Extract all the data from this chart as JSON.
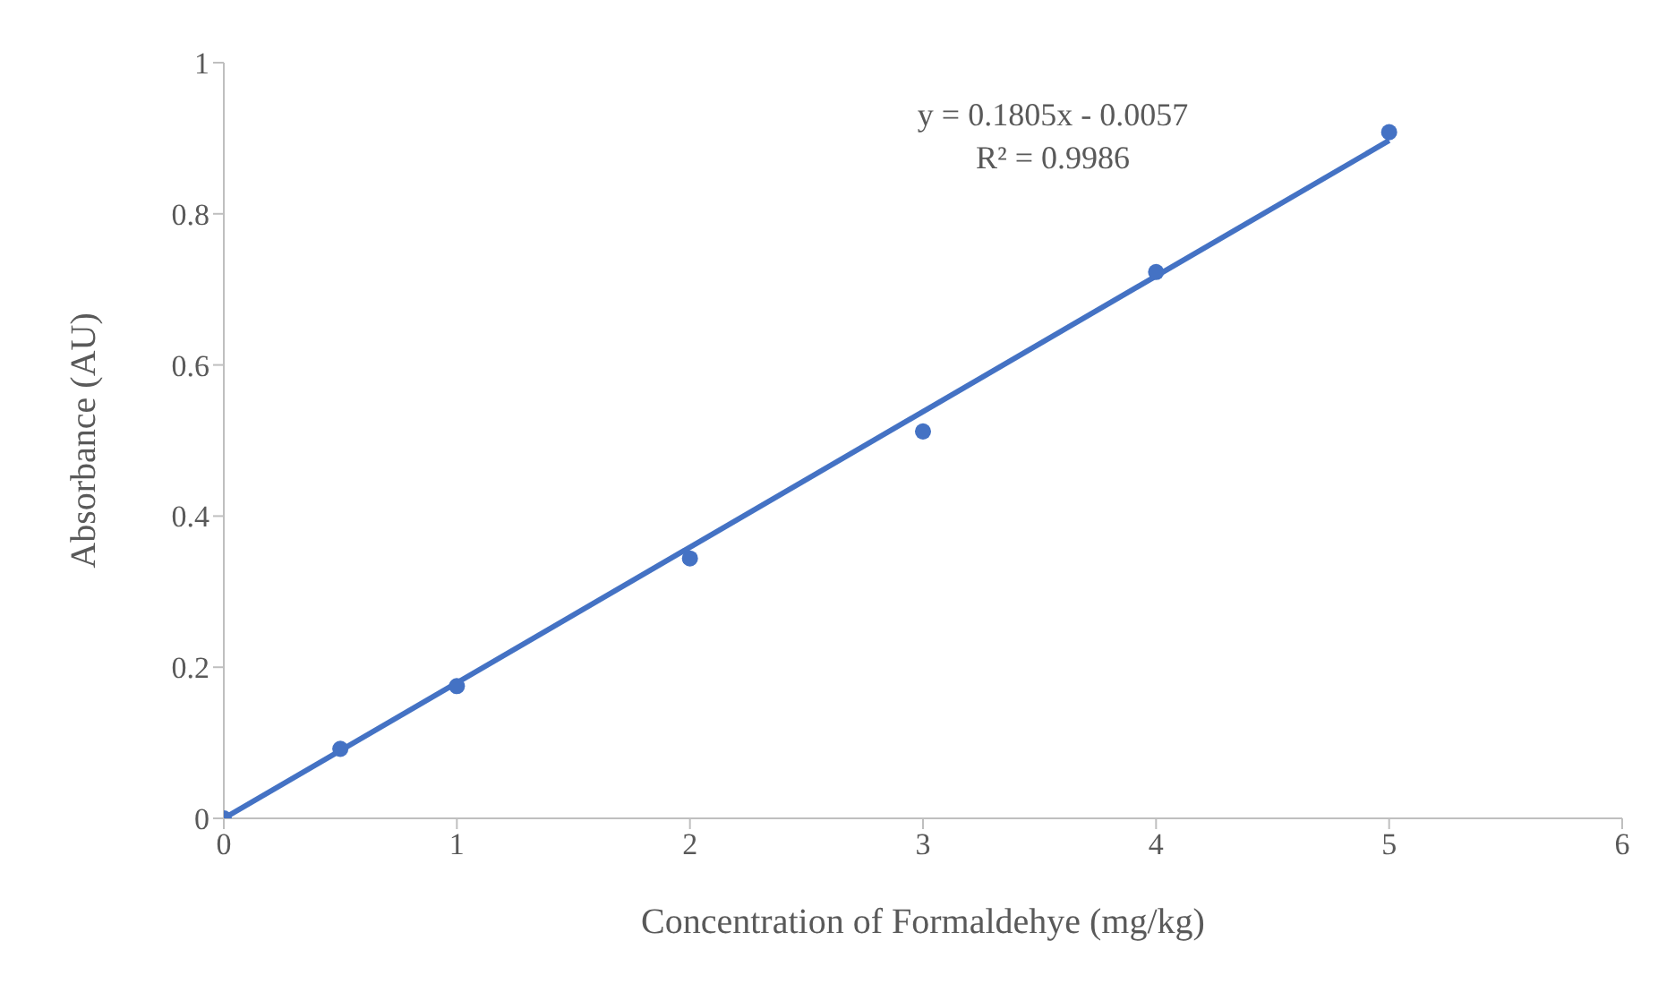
{
  "chart_data": {
    "type": "scatter",
    "xlabel": "Concentration of Formaldehye (mg/kg)",
    "ylabel": "Absorbance (AU)",
    "annotations": [
      "y = 0.1805x - 0.0057",
      "R² = 0.9986"
    ],
    "xlim": [
      0,
      6
    ],
    "xticks": [
      0,
      1,
      2,
      3,
      4,
      5,
      6
    ],
    "ylim": [
      0,
      1
    ],
    "yticks": [
      0,
      0.2,
      0.4,
      0.6,
      0.8,
      1
    ],
    "grid": false,
    "marker": "circle",
    "series": [
      {
        "color": "#4472c4",
        "x": [
          0,
          0.5,
          1,
          2,
          3,
          4,
          5
        ],
        "values": [
          0,
          0.092,
          0.175,
          0.344,
          0.512,
          0.723,
          0.908
        ]
      },
      {
        "type": "line",
        "color": "#4472c4",
        "marker": "none",
        "line_style": "solid",
        "x": [
          0,
          5
        ],
        "values": [
          0,
          0.897
        ]
      }
    ]
  }
}
